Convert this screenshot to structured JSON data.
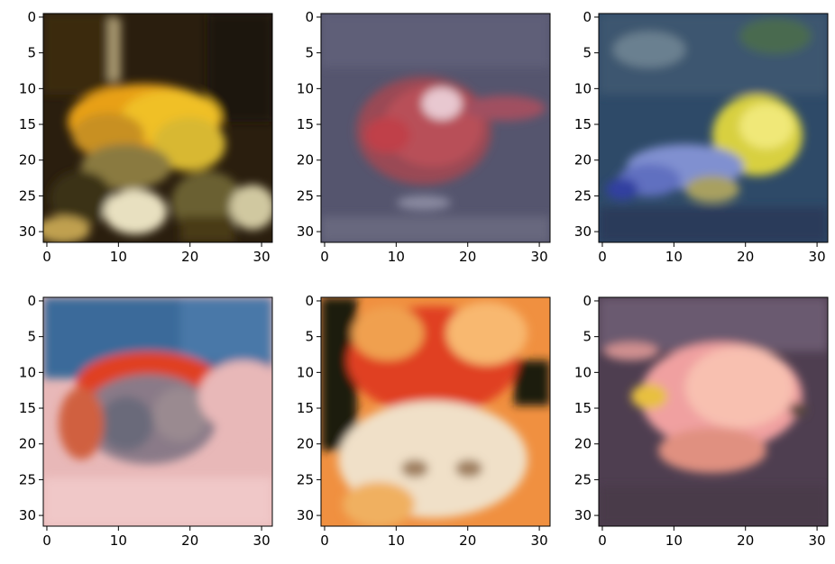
{
  "figure": {
    "rows": 2,
    "cols": 3,
    "background": "#ffffff",
    "axis_color": "#000000"
  },
  "panels": [
    {
      "name": "panel-1",
      "image_desc_colors": [
        "#1a1208",
        "#3a2a12",
        "#e8a010",
        "#f0c020",
        "#8a7a40",
        "#d8d0b0"
      ],
      "x_ticks": [
        "0",
        "10",
        "20",
        "30"
      ],
      "y_ticks": [
        "0",
        "5",
        "10",
        "15",
        "20",
        "25",
        "30"
      ]
    },
    {
      "name": "panel-2",
      "image_desc_colors": [
        "#4a4a62",
        "#5a5a78",
        "#a04048",
        "#c85058",
        "#e8c8d0",
        "#6a6a80"
      ],
      "x_ticks": [
        "0",
        "10",
        "20",
        "30"
      ],
      "y_ticks": [
        "0",
        "5",
        "10",
        "15",
        "20",
        "25",
        "30"
      ]
    },
    {
      "name": "panel-3",
      "image_desc_colors": [
        "#2a4a6a",
        "#3a5a7a",
        "#6a8aa0",
        "#d8d040",
        "#8090d8",
        "#2a3a5a"
      ],
      "x_ticks": [
        "0",
        "10",
        "20",
        "30"
      ],
      "y_ticks": [
        "0",
        "5",
        "10",
        "15",
        "20",
        "25",
        "30"
      ]
    },
    {
      "name": "panel-4",
      "image_desc_colors": [
        "#3a6a9a",
        "#6a8aaa",
        "#e04020",
        "#7a7a8a",
        "#e8b0b0",
        "#f0c8c8"
      ],
      "x_ticks": [
        "0",
        "10",
        "20",
        "30"
      ],
      "y_ticks": [
        "0",
        "5",
        "10",
        "15",
        "20",
        "25",
        "30"
      ]
    },
    {
      "name": "panel-5",
      "image_desc_colors": [
        "#1a1a10",
        "#f08030",
        "#e04020",
        "#f8a050",
        "#f0e0c8",
        "#a08060"
      ],
      "x_ticks": [
        "0",
        "10",
        "20",
        "30"
      ],
      "y_ticks": [
        "0",
        "5",
        "10",
        "15",
        "20",
        "25",
        "30"
      ]
    },
    {
      "name": "panel-6",
      "image_desc_colors": [
        "#4a3a4a",
        "#6a5a70",
        "#f0a0a0",
        "#f8c0b0",
        "#e8c040",
        "#5a4a5a"
      ],
      "x_ticks": [
        "0",
        "10",
        "20",
        "30"
      ],
      "y_ticks": [
        "0",
        "5",
        "10",
        "15",
        "20",
        "25",
        "30"
      ]
    }
  ]
}
